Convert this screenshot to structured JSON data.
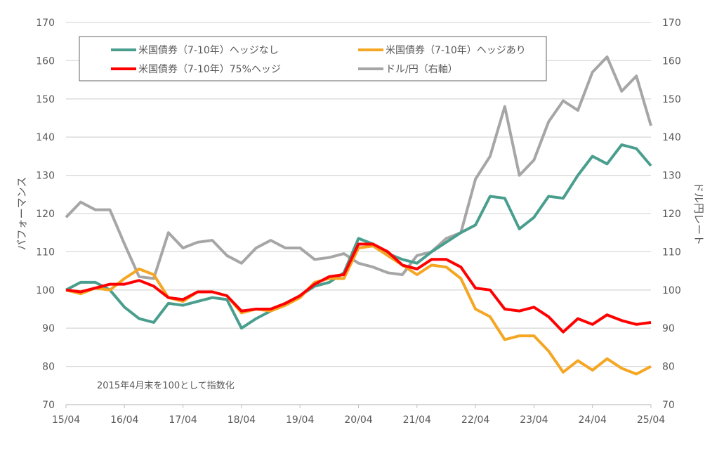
{
  "chart_data": {
    "type": "line",
    "x": [
      "15/04",
      "15/07",
      "15/10",
      "16/01",
      "16/04",
      "16/07",
      "16/10",
      "17/01",
      "17/04",
      "17/07",
      "17/10",
      "18/01",
      "18/04",
      "18/07",
      "18/10",
      "19/01",
      "19/04",
      "19/07",
      "19/10",
      "20/01",
      "20/04",
      "20/07",
      "20/10",
      "21/01",
      "21/04",
      "21/07",
      "21/10",
      "22/01",
      "22/04",
      "22/07",
      "22/10",
      "23/01",
      "23/04",
      "23/07",
      "23/10",
      "24/01",
      "24/04",
      "24/07",
      "24/10",
      "25/01",
      "25/04"
    ],
    "x_ticks": [
      "15/04",
      "16/04",
      "17/04",
      "18/04",
      "19/04",
      "20/04",
      "21/04",
      "22/04",
      "23/04",
      "24/04",
      "25/04"
    ],
    "ylabel": "パフォーマンス",
    "y2label": "ドル円レート",
    "ylim": [
      70,
      170
    ],
    "y2lim": [
      70,
      170
    ],
    "y_ticks": [
      70,
      80,
      90,
      100,
      110,
      120,
      130,
      140,
      150,
      160,
      170
    ],
    "grid": true,
    "legend_placement": "top",
    "annotation": "2015年4月末を100として指数化",
    "series": [
      {
        "name": "米国債券（7-10年）ヘッジなし",
        "color": "#4a9e8e",
        "axis": "left",
        "values": [
          100,
          102,
          102,
          100,
          95.5,
          92.5,
          91.5,
          96.5,
          96,
          97,
          98,
          97.5,
          90,
          92.5,
          94.5,
          96.5,
          98.5,
          101,
          102,
          104.5,
          113.5,
          112,
          109.5,
          108,
          107,
          110,
          112.5,
          115,
          117,
          124.5,
          124,
          116,
          119,
          124.5,
          124,
          130,
          135,
          133,
          138,
          137,
          132.5
        ]
      },
      {
        "name": "米国債券（7-10年）ヘッジあり",
        "color": "#f5a623",
        "axis": "left",
        "values": [
          100,
          99,
          100.5,
          100,
          103,
          105.5,
          104,
          98,
          97,
          99.5,
          99.5,
          98.5,
          94,
          95,
          94.5,
          96,
          98,
          102,
          103,
          103,
          111,
          111.5,
          109,
          106.5,
          104,
          106.5,
          106,
          103,
          95,
          93,
          87,
          88,
          88,
          84,
          78.5,
          81.5,
          79,
          82,
          79.5,
          78,
          80
        ]
      },
      {
        "name": "米国債券（7-10年）75%ヘッジ",
        "color": "#ff0000",
        "axis": "left",
        "values": [
          100,
          99.5,
          100.5,
          101.5,
          101.5,
          102.5,
          101,
          98,
          97.5,
          99.5,
          99.5,
          98.5,
          94.5,
          95,
          95,
          96.5,
          98.5,
          101.5,
          103.5,
          104,
          112,
          112,
          110,
          106.5,
          105.5,
          108,
          108,
          106,
          100.5,
          100,
          95,
          94.5,
          95.5,
          93,
          89,
          92.5,
          91,
          93.5,
          92,
          91,
          91.5
        ]
      },
      {
        "name": "ドル/円（右軸）",
        "color": "#a6a6a6",
        "axis": "right",
        "values": [
          119,
          123,
          121,
          121,
          112,
          103.5,
          103,
          115,
          111,
          112.5,
          113,
          109,
          107,
          111,
          113,
          111,
          111,
          108,
          108.5,
          109.5,
          107,
          106,
          104.5,
          104,
          109,
          110,
          113.5,
          115,
          129,
          135,
          148,
          130,
          134,
          144,
          149.5,
          147,
          157,
          161,
          152,
          156,
          143
        ]
      }
    ]
  }
}
